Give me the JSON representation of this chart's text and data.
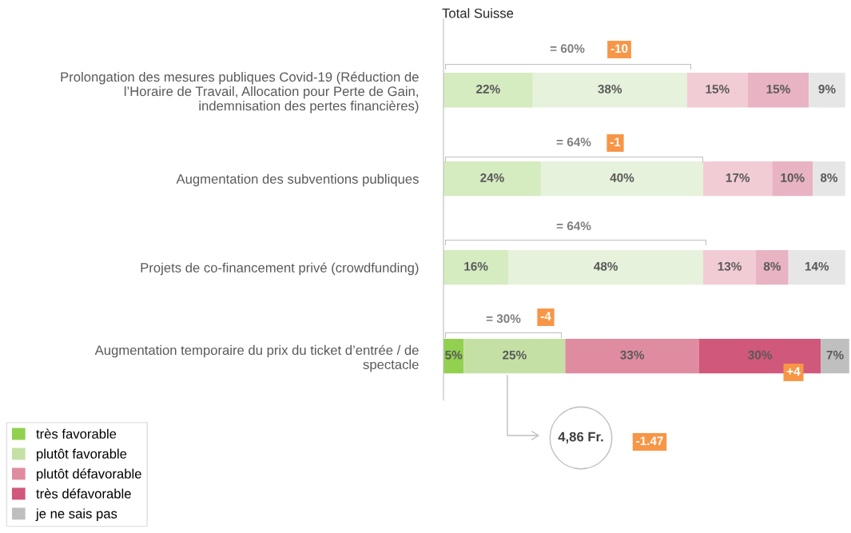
{
  "chart_data": {
    "type": "bar",
    "orientation": "horizontal",
    "stacked": true,
    "title": "Total Suisse",
    "categories": [
      "Prolongation des mesures publiques Covid-19 (Réduction de\nl’Horaire de Travail, Allocation pour Perte de Gain,\nindemnisation des pertes financières)",
      "Augmentation des subventions publiques",
      "Projets de co-financement privé (crowdfunding)",
      "Augmentation temporaire du prix du ticket d’entrée / de\nspectacle"
    ],
    "series": [
      {
        "name": "très favorable",
        "color": "#92d050",
        "colors": [
          "#d5ebc0",
          "#d5ebc0",
          "#d5ebc0",
          "#92d050"
        ],
        "values": [
          22,
          24,
          16,
          5
        ],
        "value_labels": [
          "22%",
          "24%",
          "16%",
          "5%"
        ]
      },
      {
        "name": "plutôt favorable",
        "color": "#c5e0a5",
        "colors": [
          "#e6f2db",
          "#e6f2db",
          "#e6f2db",
          "#c5e0a5"
        ],
        "values": [
          38,
          40,
          48,
          25
        ],
        "value_labels": [
          "38%",
          "40%",
          "48%",
          "25%"
        ]
      },
      {
        "name": "plutôt défavorable",
        "color": "#e08ca0",
        "colors": [
          "#f2ccd5",
          "#f2ccd5",
          "#f2ccd5",
          "#e08ca0"
        ],
        "values": [
          15,
          17,
          13,
          33
        ],
        "value_labels": [
          "15%",
          "17%",
          "13%",
          "33%"
        ]
      },
      {
        "name": "très défavorable",
        "color": "#d0587a",
        "colors": [
          "#e8b3c2",
          "#e8b3c2",
          "#e8b3c2",
          "#d0587a"
        ],
        "values": [
          15,
          10,
          8,
          30
        ],
        "value_labels": [
          "15%",
          "10%",
          "8%",
          "30%"
        ]
      },
      {
        "name": "je ne sais pas",
        "color": "#bfbfbf",
        "colors": [
          "#e6e6e6",
          "#e6e6e6",
          "#e6e6e6",
          "#bfbfbf"
        ],
        "values": [
          9,
          8,
          14,
          7
        ],
        "value_labels": [
          "9%",
          "8%",
          "14%",
          "7%"
        ]
      }
    ],
    "legend": "bottom left",
    "annotations": [
      "= 60%",
      "-10",
      "= 64%",
      "-1",
      "= 64%",
      "= 30%",
      "-4",
      "+4",
      "4,86 Fr.",
      "-1.47"
    ]
  }
}
